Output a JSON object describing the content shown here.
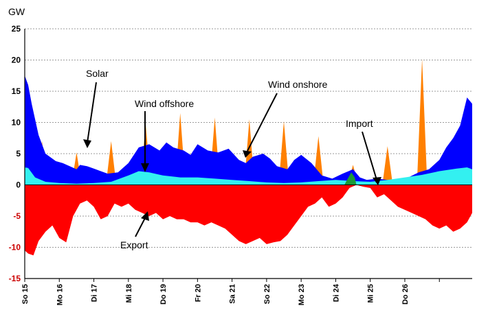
{
  "chart_data": {
    "type": "area",
    "ylabel": "GW",
    "ylim": [
      -15,
      25
    ],
    "yticks": [
      25,
      20,
      15,
      10,
      5,
      0,
      -5,
      -10,
      -15
    ],
    "x_tick_labels": [
      "So 15",
      "Mo 16",
      "Di 17",
      "Mi 18",
      "Do 19",
      "Fr 20",
      "Sa 21",
      "So 22",
      "Mo 23",
      "Di 24",
      "Mi 25",
      "Do 26"
    ],
    "x_days": [
      0,
      1,
      2,
      3,
      4,
      5,
      6,
      7,
      8,
      9,
      10,
      11,
      12
    ],
    "grid": true,
    "annotations": [
      "Solar",
      "Wind offshore",
      "Wind onshore",
      "Import",
      "Export"
    ],
    "colors": {
      "solar": "#ff8000",
      "wind_onshore": "#0000ff",
      "wind_offshore": "#33f0f0",
      "import": "#1a9a3a",
      "export": "#ff0000",
      "positive_tick": "#000000",
      "negative_tick": "#cc0000"
    },
    "series": [
      {
        "key": "wind_offshore",
        "x": [
          0,
          0.1,
          0.3,
          0.6,
          1.0,
          1.5,
          2.0,
          2.5,
          3.0,
          3.3,
          3.6,
          4.0,
          4.5,
          5.0,
          5.5,
          6.0,
          6.5,
          7.0,
          7.5,
          8.0,
          8.5,
          9.0,
          9.5,
          10.0,
          10.5,
          11.0,
          11.5,
          12.0,
          12.5,
          12.8,
          12.95
        ],
        "values": [
          2.8,
          2.7,
          1.2,
          0.5,
          0.3,
          0.2,
          0.3,
          0.5,
          1.5,
          2.2,
          2.0,
          1.5,
          1.2,
          1.2,
          1.0,
          0.8,
          0.6,
          0.4,
          0.3,
          0.4,
          0.6,
          0.8,
          0.6,
          0.5,
          0.8,
          1.2,
          1.6,
          2.2,
          2.6,
          2.8,
          2.5
        ]
      },
      {
        "key": "wind_onshore",
        "x": [
          0,
          0.1,
          0.2,
          0.4,
          0.6,
          0.9,
          1.1,
          1.3,
          1.5,
          1.6,
          1.8,
          2.0,
          2.2,
          2.4,
          2.7,
          3.0,
          3.3,
          3.6,
          3.9,
          4.1,
          4.3,
          4.6,
          4.8,
          5.0,
          5.3,
          5.6,
          5.9,
          6.2,
          6.4,
          6.6,
          6.9,
          7.1,
          7.3,
          7.6,
          7.8,
          8.0,
          8.3,
          8.6,
          8.9,
          9.2,
          9.5,
          9.7,
          9.9,
          10.2,
          10.5,
          10.8,
          11.1,
          11.4,
          11.7,
          12.0,
          12.2,
          12.4,
          12.6,
          12.8,
          12.95
        ],
        "values": [
          17.5,
          16,
          13,
          8,
          5,
          3.8,
          3.5,
          3.0,
          2.5,
          3.2,
          3.0,
          2.6,
          2.2,
          1.8,
          2.0,
          3.5,
          6.0,
          6.5,
          5.5,
          6.8,
          6.0,
          5.5,
          4.8,
          6.5,
          5.5,
          5.2,
          5.8,
          4.0,
          3.5,
          4.5,
          5.0,
          4.2,
          3.0,
          2.5,
          4.0,
          4.8,
          3.5,
          1.5,
          1.0,
          1.8,
          2.5,
          1.2,
          0.8,
          1.0,
          0.8,
          0.9,
          1.2,
          2.0,
          2.5,
          4.0,
          6.0,
          7.5,
          9.5,
          14.0,
          13.0
        ]
      },
      {
        "key": "solar",
        "x": [
          0,
          0.35,
          0.5,
          0.65,
          0.8,
          1.2,
          1.35,
          1.5,
          1.65,
          1.8,
          2.2,
          2.35,
          2.5,
          2.65,
          2.8,
          3.2,
          3.35,
          3.5,
          3.65,
          3.8,
          4.2,
          4.35,
          4.5,
          4.65,
          4.8,
          5.2,
          5.35,
          5.5,
          5.65,
          5.8,
          6.2,
          6.35,
          6.5,
          6.65,
          6.8,
          7.2,
          7.35,
          7.5,
          7.65,
          7.8,
          8.2,
          8.35,
          8.5,
          8.65,
          8.8,
          9.2,
          9.35,
          9.5,
          9.65,
          9.8,
          10.2,
          10.35,
          10.5,
          10.65,
          10.8,
          11.2,
          11.35,
          11.5,
          11.65,
          11.8,
          12.95
        ],
        "values": [
          0,
          0,
          7,
          0,
          0,
          0,
          0,
          5.2,
          0,
          0,
          0,
          0,
          7.0,
          0,
          0,
          0,
          0,
          9.8,
          0,
          0,
          0,
          0,
          11.5,
          0,
          0,
          0,
          0,
          10.8,
          0,
          0,
          0,
          0,
          10.5,
          0,
          0,
          0,
          0,
          10.2,
          0,
          0,
          0,
          0,
          7.8,
          0,
          0,
          0,
          0,
          3.2,
          0,
          0,
          0,
          0,
          6.2,
          0,
          0,
          0,
          0,
          20.2,
          0,
          0,
          0
        ]
      },
      {
        "key": "import",
        "x": [
          9.25,
          9.35,
          9.45,
          9.55,
          9.6
        ],
        "values": [
          0,
          1.0,
          2.0,
          1.2,
          0
        ]
      },
      {
        "key": "export",
        "x": [
          0,
          0.1,
          0.25,
          0.4,
          0.6,
          0.8,
          1.0,
          1.2,
          1.4,
          1.6,
          1.8,
          2.0,
          2.2,
          2.4,
          2.6,
          2.8,
          3.0,
          3.2,
          3.4,
          3.6,
          3.8,
          4.0,
          4.2,
          4.4,
          4.6,
          4.8,
          5.0,
          5.2,
          5.4,
          5.6,
          5.8,
          6.0,
          6.2,
          6.4,
          6.6,
          6.8,
          7.0,
          7.2,
          7.4,
          7.6,
          7.8,
          8.0,
          8.2,
          8.4,
          8.6,
          8.8,
          9.0,
          9.2,
          9.4,
          9.6,
          9.8,
          10.0,
          10.2,
          10.4,
          10.6,
          10.8,
          11.0,
          11.2,
          11.4,
          11.6,
          11.8,
          12.0,
          12.2,
          12.4,
          12.6,
          12.8,
          12.95
        ],
        "values": [
          -10.5,
          -11.0,
          -11.3,
          -9.0,
          -7.5,
          -6.5,
          -8.5,
          -9.2,
          -5.0,
          -3.0,
          -2.5,
          -3.5,
          -5.5,
          -5.0,
          -3.0,
          -3.5,
          -3.0,
          -4.0,
          -4.5,
          -5.0,
          -4.5,
          -5.5,
          -5.0,
          -5.5,
          -5.5,
          -6.0,
          -6.0,
          -6.5,
          -6.0,
          -6.5,
          -7.0,
          -8.0,
          -9.0,
          -9.5,
          -9.0,
          -8.5,
          -9.5,
          -9.2,
          -9.0,
          -8.0,
          -6.5,
          -5.0,
          -3.5,
          -3.0,
          -2.0,
          -3.5,
          -3.0,
          -2.0,
          -0.5,
          0,
          -0.3,
          -0.5,
          -2.0,
          -1.5,
          -2.5,
          -3.5,
          -4.0,
          -4.5,
          -5.0,
          -5.5,
          -6.5,
          -7.0,
          -6.5,
          -7.5,
          -7.0,
          -6.0,
          -4.5
        ]
      }
    ]
  }
}
